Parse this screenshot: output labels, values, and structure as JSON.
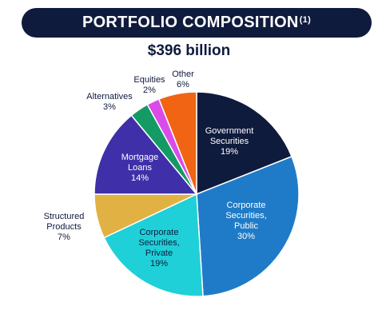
{
  "header": {
    "title": "PORTFOLIO COMPOSITION",
    "footnote": "(1)"
  },
  "subtitle": "$396 billion",
  "chart_data": {
    "type": "pie",
    "title": "PORTFOLIO COMPOSITION",
    "subtitle": "$396 billion",
    "start_angle_deg": 0,
    "direction": "clockwise",
    "slices": [
      {
        "label_lines": [
          "Government",
          "Securities"
        ],
        "value": 19,
        "pct_label": "19%",
        "color": "#0f1b3d",
        "text_color": "#ffffff",
        "label_inside": true
      },
      {
        "label_lines": [
          "Corporate",
          "Securities,",
          "Public"
        ],
        "value": 30,
        "pct_label": "30%",
        "color": "#1f7bc7",
        "text_color": "#ffffff",
        "label_inside": true
      },
      {
        "label_lines": [
          "Corporate",
          "Securities,",
          "Private"
        ],
        "value": 19,
        "pct_label": "19%",
        "color": "#1fd0d8",
        "text_color": "#0f1b3d",
        "label_inside": true
      },
      {
        "label_lines": [
          "Structured",
          "Products"
        ],
        "value": 7,
        "pct_label": "7%",
        "color": "#e2b144",
        "text_color": "#0f1b3d",
        "label_inside": false
      },
      {
        "label_lines": [
          "Mortgage",
          "Loans"
        ],
        "value": 14,
        "pct_label": "14%",
        "color": "#3f2fa8",
        "text_color": "#ffffff",
        "label_inside": true
      },
      {
        "label_lines": [
          "Alternatives"
        ],
        "value": 3,
        "pct_label": "3%",
        "color": "#149a64",
        "text_color": "#0f1b3d",
        "label_inside": false
      },
      {
        "label_lines": [
          "Equities"
        ],
        "value": 2,
        "pct_label": "2%",
        "color": "#d94ce8",
        "text_color": "#0f1b3d",
        "label_inside": false
      },
      {
        "label_lines": [
          "Other"
        ],
        "value": 6,
        "pct_label": "6%",
        "color": "#f06414",
        "text_color": "#0f1b3d",
        "label_inside": false
      }
    ]
  }
}
